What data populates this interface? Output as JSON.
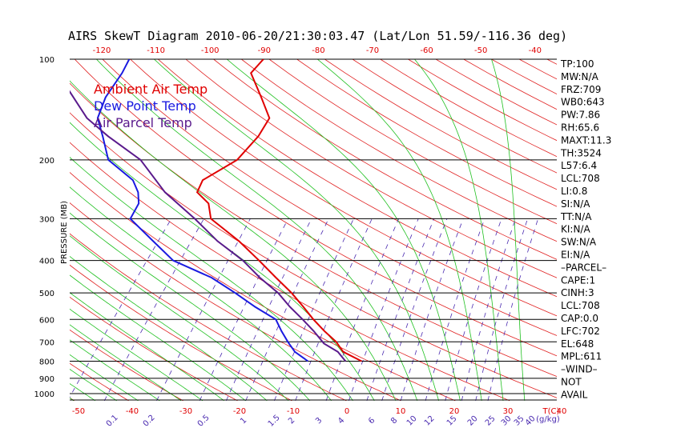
{
  "chart_data": {
    "type": "line",
    "title": "AIRS SkewT Diagram 2010-06-20/21:30:03.47 (Lat/Lon 51.59/-116.36 deg)",
    "ylabel": "PRESSURE (MB)",
    "xlabel": "T(C)",
    "mixing_ratio_unit": "(g/kg)",
    "pressure_ticks": [
      100,
      200,
      300,
      400,
      500,
      600,
      700,
      800,
      900,
      1000
    ],
    "temperature_ticks_bottom": [
      -50,
      -40,
      -30,
      -20,
      -10,
      0,
      10,
      20,
      30,
      40
    ],
    "temperature_ticks_top": [
      -120,
      -110,
      -100,
      -90,
      -80,
      -70,
      -60,
      -50,
      -40
    ],
    "mixing_ratio_labels": [
      "0.1",
      "0.2",
      "0.5",
      "1",
      "1.5",
      "2",
      "3",
      "4",
      "6",
      "8",
      "10",
      "12",
      "15",
      "20",
      "25",
      "30",
      "35",
      "40"
    ],
    "legend": [
      {
        "label": "Ambient Air Temp",
        "color": "#e00000"
      },
      {
        "label": "Dew Point Temp",
        "color": "#1a1ae0"
      },
      {
        "label": "Air Parcel Temp",
        "color": "#5a1a8c"
      }
    ],
    "series": [
      {
        "name": "Ambient Air Temp",
        "color": "#e00000",
        "points": [
          [
            800,
            7
          ],
          [
            750,
            2
          ],
          [
            700,
            -1
          ],
          [
            650,
            -5
          ],
          [
            600,
            -9
          ],
          [
            550,
            -13
          ],
          [
            500,
            -17.5
          ],
          [
            450,
            -23
          ],
          [
            400,
            -29
          ],
          [
            350,
            -36
          ],
          [
            300,
            -45
          ],
          [
            270,
            -48
          ],
          [
            250,
            -52
          ],
          [
            230,
            -53
          ],
          [
            200,
            -50
          ],
          [
            170,
            -50
          ],
          [
            150,
            -51
          ],
          [
            130,
            -56
          ],
          [
            110,
            -62
          ],
          [
            100,
            -62
          ]
        ]
      },
      {
        "name": "Dew Point Temp",
        "color": "#1a1ae0",
        "points": [
          [
            800,
            -3
          ],
          [
            750,
            -7
          ],
          [
            700,
            -10
          ],
          [
            650,
            -13
          ],
          [
            600,
            -16
          ],
          [
            550,
            -22
          ],
          [
            500,
            -28
          ],
          [
            450,
            -35
          ],
          [
            400,
            -45
          ],
          [
            350,
            -52
          ],
          [
            300,
            -60
          ],
          [
            270,
            -61
          ],
          [
            250,
            -63
          ],
          [
            230,
            -66
          ],
          [
            200,
            -74
          ],
          [
            170,
            -79
          ],
          [
            150,
            -83
          ],
          [
            130,
            -85
          ],
          [
            110,
            -86
          ],
          [
            100,
            -87
          ]
        ]
      },
      {
        "name": "Air Parcel Temp",
        "color": "#5a1a8c",
        "points": [
          [
            800,
            4
          ],
          [
            750,
            1
          ],
          [
            708,
            -3
          ],
          [
            650,
            -7
          ],
          [
            600,
            -11
          ],
          [
            550,
            -15.5
          ],
          [
            500,
            -20
          ],
          [
            450,
            -26
          ],
          [
            400,
            -32
          ],
          [
            350,
            -40
          ],
          [
            300,
            -48
          ],
          [
            250,
            -58
          ],
          [
            200,
            -68
          ],
          [
            170,
            -78
          ],
          [
            150,
            -85
          ],
          [
            130,
            -91
          ],
          [
            110,
            -98
          ],
          [
            100,
            -102
          ]
        ]
      }
    ],
    "colors": {
      "dry_adiabat": "#e02020",
      "moist_adiabat": "#20c020",
      "mixing_ratio": "#4a2ab0",
      "isobar": "#000000"
    }
  },
  "indices": [
    "TP:100",
    "MW:N/A",
    "FRZ:709",
    "WB0:643",
    "PW:7.86",
    "RH:65.6",
    "MAXT:11.3",
    "TH:3524",
    "L57:6.4",
    "LCL:708",
    "LI:0.8",
    "SI:N/A",
    "TT:N/A",
    "KI:N/A",
    "SW:N/A",
    "EI:N/A",
    "–PARCEL–",
    "CAPE:1",
    "CINH:3",
    "LCL:708",
    "CAP:0.0",
    "LFC:702",
    "EL:648",
    "MPL:611",
    "–WIND–",
    "NOT",
    "AVAIL"
  ]
}
